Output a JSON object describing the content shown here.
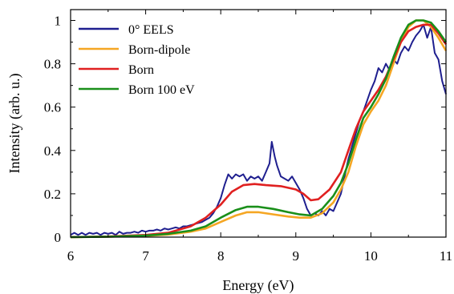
{
  "chart_data": {
    "type": "line",
    "xlabel": "Energy (eV)",
    "ylabel": "Intensity (arb. u.)",
    "xlim": [
      6,
      11
    ],
    "ylim": [
      0,
      1.05
    ],
    "xticks": [
      "6",
      "7",
      "8",
      "9",
      "10",
      "11"
    ],
    "yticks": [
      "0",
      "0.2",
      "0.4",
      "0.6",
      "0.8",
      "1"
    ],
    "legend_position": "top-left",
    "grid": false,
    "series": [
      {
        "name": "0° EELS",
        "color": "#1f1f8f",
        "x": [
          6.0,
          6.05,
          6.1,
          6.15,
          6.2,
          6.25,
          6.3,
          6.35,
          6.4,
          6.45,
          6.5,
          6.55,
          6.6,
          6.65,
          6.7,
          6.75,
          6.8,
          6.85,
          6.9,
          6.95,
          7.0,
          7.05,
          7.1,
          7.15,
          7.2,
          7.25,
          7.3,
          7.35,
          7.4,
          7.45,
          7.5,
          7.55,
          7.6,
          7.65,
          7.7,
          7.75,
          7.8,
          7.85,
          7.9,
          7.95,
          8.0,
          8.05,
          8.1,
          8.15,
          8.2,
          8.25,
          8.3,
          8.35,
          8.4,
          8.45,
          8.5,
          8.55,
          8.6,
          8.65,
          8.68,
          8.72,
          8.75,
          8.8,
          8.85,
          8.9,
          8.95,
          9.0,
          9.05,
          9.1,
          9.15,
          9.2,
          9.25,
          9.3,
          9.35,
          9.4,
          9.45,
          9.5,
          9.55,
          9.6,
          9.65,
          9.7,
          9.75,
          9.8,
          9.85,
          9.9,
          9.95,
          10.0,
          10.05,
          10.1,
          10.15,
          10.2,
          10.25,
          10.3,
          10.35,
          10.4,
          10.45,
          10.5,
          10.55,
          10.6,
          10.65,
          10.7,
          10.75,
          10.8,
          10.85,
          10.9,
          10.95,
          11.0
        ],
        "values": [
          0.01,
          0.02,
          0.01,
          0.02,
          0.01,
          0.02,
          0.015,
          0.02,
          0.01,
          0.02,
          0.015,
          0.02,
          0.01,
          0.025,
          0.015,
          0.02,
          0.02,
          0.025,
          0.02,
          0.03,
          0.025,
          0.03,
          0.03,
          0.035,
          0.03,
          0.04,
          0.035,
          0.04,
          0.045,
          0.04,
          0.05,
          0.05,
          0.055,
          0.06,
          0.065,
          0.07,
          0.08,
          0.09,
          0.11,
          0.14,
          0.18,
          0.24,
          0.29,
          0.27,
          0.29,
          0.28,
          0.29,
          0.26,
          0.28,
          0.27,
          0.28,
          0.26,
          0.3,
          0.34,
          0.44,
          0.37,
          0.33,
          0.28,
          0.27,
          0.26,
          0.28,
          0.25,
          0.22,
          0.18,
          0.13,
          0.1,
          0.11,
          0.1,
          0.12,
          0.1,
          0.13,
          0.12,
          0.16,
          0.2,
          0.28,
          0.36,
          0.42,
          0.48,
          0.54,
          0.58,
          0.63,
          0.68,
          0.72,
          0.78,
          0.76,
          0.8,
          0.77,
          0.82,
          0.8,
          0.85,
          0.88,
          0.86,
          0.9,
          0.93,
          0.95,
          0.98,
          0.92,
          0.97,
          0.85,
          0.82,
          0.72,
          0.66
        ]
      },
      {
        "name": "Born-dipole",
        "color": "#f5a623",
        "x": [
          6.0,
          6.5,
          7.0,
          7.3,
          7.6,
          7.8,
          8.0,
          8.2,
          8.35,
          8.5,
          8.7,
          8.9,
          9.05,
          9.2,
          9.35,
          9.5,
          9.6,
          9.7,
          9.8,
          9.9,
          10.0,
          10.1,
          10.2,
          10.3,
          10.4,
          10.5,
          10.6,
          10.7,
          10.8,
          10.9,
          11.0
        ],
        "values": [
          0.0,
          0.002,
          0.006,
          0.012,
          0.025,
          0.04,
          0.07,
          0.1,
          0.115,
          0.115,
          0.105,
          0.095,
          0.09,
          0.09,
          0.11,
          0.16,
          0.22,
          0.3,
          0.42,
          0.52,
          0.58,
          0.63,
          0.7,
          0.8,
          0.9,
          0.97,
          1.0,
          1.0,
          0.97,
          0.92,
          0.86
        ]
      },
      {
        "name": "Born",
        "color": "#e02020",
        "x": [
          6.0,
          6.5,
          7.0,
          7.3,
          7.6,
          7.8,
          8.0,
          8.15,
          8.3,
          8.45,
          8.6,
          8.8,
          9.0,
          9.1,
          9.2,
          9.3,
          9.45,
          9.6,
          9.7,
          9.8,
          9.9,
          10.0,
          10.1,
          10.2,
          10.3,
          10.4,
          10.5,
          10.6,
          10.7,
          10.8,
          10.9,
          11.0
        ],
        "values": [
          0.0,
          0.003,
          0.01,
          0.02,
          0.05,
          0.09,
          0.15,
          0.21,
          0.24,
          0.245,
          0.24,
          0.235,
          0.22,
          0.2,
          0.17,
          0.175,
          0.22,
          0.3,
          0.4,
          0.5,
          0.58,
          0.63,
          0.68,
          0.74,
          0.82,
          0.9,
          0.95,
          0.97,
          0.98,
          0.98,
          0.94,
          0.89
        ]
      },
      {
        "name": "Born 100 eV",
        "color": "#1a8f1a",
        "x": [
          6.0,
          6.5,
          7.0,
          7.3,
          7.6,
          7.8,
          8.0,
          8.2,
          8.35,
          8.5,
          8.7,
          8.9,
          9.05,
          9.2,
          9.35,
          9.5,
          9.6,
          9.7,
          9.8,
          9.9,
          10.0,
          10.1,
          10.2,
          10.3,
          10.4,
          10.5,
          10.6,
          10.7,
          10.8,
          10.9,
          11.0
        ],
        "values": [
          0.0,
          0.002,
          0.007,
          0.015,
          0.03,
          0.05,
          0.09,
          0.125,
          0.14,
          0.14,
          0.13,
          0.115,
          0.105,
          0.1,
          0.13,
          0.19,
          0.25,
          0.34,
          0.45,
          0.55,
          0.6,
          0.66,
          0.73,
          0.83,
          0.92,
          0.98,
          1.0,
          1.0,
          0.99,
          0.95,
          0.9
        ]
      }
    ]
  }
}
